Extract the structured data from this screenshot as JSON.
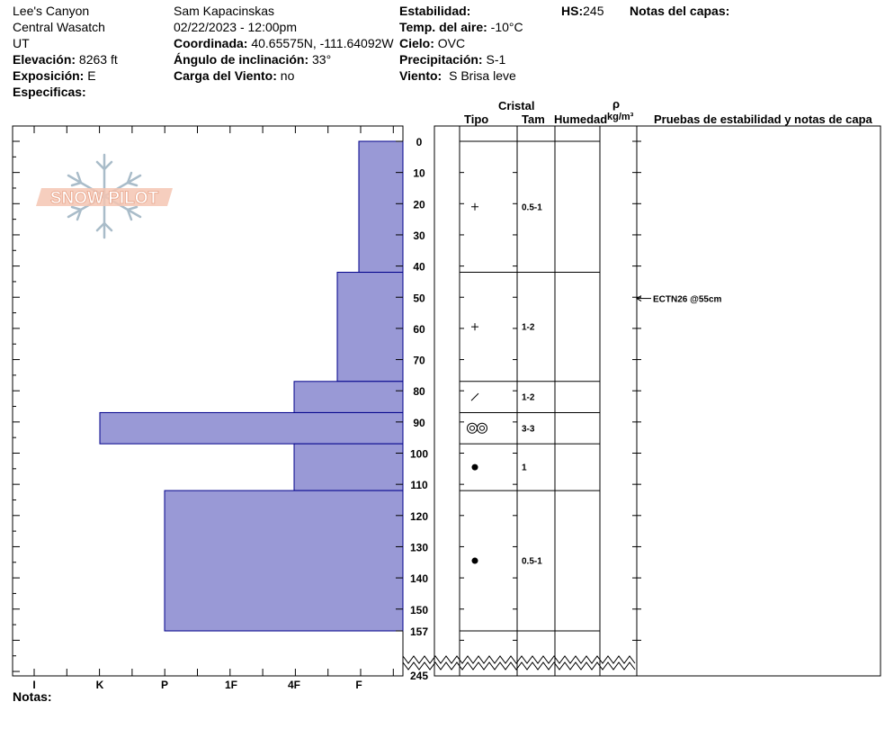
{
  "header": {
    "location": "Lee's Canyon",
    "range": "Central Wasatch",
    "state": "UT",
    "elevation_label": "Elevación:",
    "elevation_value": "8263 ft",
    "aspect_label": "Exposición:",
    "aspect_value": "E",
    "specifics_label": "Especificas:",
    "observer": "Sam Kapacinskas",
    "datetime": "02/22/2023 - 12:00pm",
    "coord_label": "Coordinada:",
    "coord_value": "40.65575N, -111.64092W",
    "slope_label": "Ángulo de inclinación:",
    "slope_value": "33°",
    "windload_label": "Carga del Viento:",
    "windload_value": "no",
    "stability_label": "Estabilidad:",
    "airtemp_label": "Temp. del aire:",
    "airtemp_value": "-10°C",
    "sky_label": "Cielo:",
    "sky_value": "OVC",
    "precip_label": "Precipitación:",
    "precip_value": "S-1",
    "wind_label": "Viento:",
    "wind_value": "S Brisa leve",
    "hs_label": "HS:",
    "hs_value": "245",
    "layer_notes_label": "Notas del capas:"
  },
  "columns": {
    "crystal": "Cristal",
    "type": "Tipo",
    "size": "Tam",
    "humidity": "Humedad",
    "rho": "ρ",
    "density_unit": "kg/m³",
    "tests": "Pruebas de estabilidad y notas de capa"
  },
  "notes_label": "Notas:",
  "logo_text": "SNOW PILOT",
  "colors": {
    "hardness_fill": "#9999d6",
    "hardness_stroke": "#00008b"
  },
  "chart_data": {
    "type": "bar",
    "orientation": "horizontal",
    "depth_ticks": [
      "0",
      "10",
      "20",
      "30",
      "40",
      "50",
      "60",
      "70",
      "80",
      "90",
      "100",
      "110",
      "120",
      "130",
      "140",
      "150",
      "157"
    ],
    "depth_bottom_label": "245",
    "depth_range": [
      0,
      157
    ],
    "hardness_scale": [
      "I",
      "K",
      "P",
      "1F",
      "4F",
      "F"
    ],
    "layers": [
      {
        "top": 0,
        "bottom": 42,
        "hardness": "F",
        "crystal": "plus",
        "size": "0.5-1"
      },
      {
        "top": 42,
        "bottom": 77,
        "hardness": "F+",
        "crystal": "plus",
        "size": "1-2"
      },
      {
        "top": 77,
        "bottom": 87,
        "hardness": "4F",
        "crystal": "slash",
        "size": "1-2"
      },
      {
        "top": 87,
        "bottom": 97,
        "hardness": "K",
        "crystal": "double-ring",
        "size": "3-3"
      },
      {
        "top": 97,
        "bottom": 112,
        "hardness": "4F",
        "crystal": "dot",
        "size": "1"
      },
      {
        "top": 112,
        "bottom": 157,
        "hardness": "P",
        "crystal": "dot",
        "size": "0.5-1"
      }
    ],
    "tests": [
      {
        "depth": 55,
        "label": "ECTN26 @55cm"
      }
    ]
  }
}
